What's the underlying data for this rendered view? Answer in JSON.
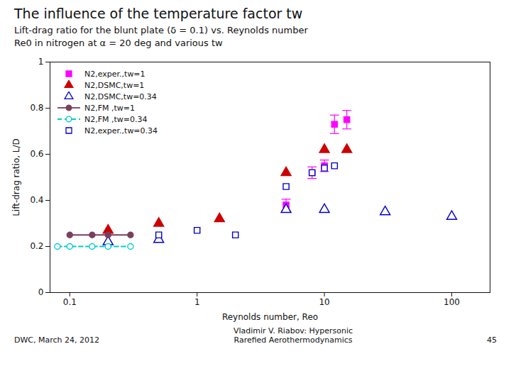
{
  "chart_data": {
    "type": "line",
    "title": "The influence of the temperature factor tw",
    "subtitle": "Lift-drag ratio for the blunt plate (δ = 0.1) vs. Reynolds number\nRe0 in nitrogen at α = 20 deg and various tw",
    "xlabel": "Reynolds number, Reo",
    "ylabel": "Lift-drag ratio, L/D",
    "annotations": [
      "DWC, March 24, 2012",
      "Vladimir V. Riabov: Hypersonic\nRarefied Aerothermodynamics",
      "45"
    ],
    "log": "x",
    "xlim": [
      0.07,
      200
    ],
    "xticks": [
      0.1,
      1,
      10,
      100
    ],
    "ylim": [
      0,
      1.0
    ],
    "yticks": [
      0,
      0.2,
      0.4,
      0.6,
      0.8,
      1
    ],
    "grid": false,
    "legend": "upper left",
    "series": [
      {
        "name": "N2,exper.,tw=1",
        "type": "scatter",
        "color": "#FF00FF",
        "marker": "filled_square",
        "line_style": "none",
        "x": [
          5,
          8,
          10,
          12,
          15
        ],
        "values": [
          0.38,
          0.52,
          0.55,
          0.73,
          0.75
        ],
        "yerr": [
          0.025,
          0.025,
          0.025,
          0.04,
          0.04
        ]
      },
      {
        "name": "N2,DSMC,tw=1",
        "type": "scatter",
        "color": "#CC0000",
        "marker": "filled_triangle",
        "line_style": "none",
        "x": [
          0.2,
          0.5,
          1.5,
          5,
          10,
          15
        ],
        "values": [
          0.27,
          0.3,
          0.32,
          0.52,
          0.62,
          0.62
        ]
      },
      {
        "name": "N2,DSMC,tw=0.34",
        "type": "scatter",
        "color": "#0000CC",
        "marker": "open_triangle",
        "line_style": "none",
        "x": [
          0.2,
          0.5,
          5,
          10,
          30,
          100
        ],
        "values": [
          0.22,
          0.23,
          0.36,
          0.36,
          0.35,
          0.33
        ]
      },
      {
        "name": "N2,FM ,tw=1",
        "type": "line",
        "color": "#7B3F5E",
        "marker": "filled_circle",
        "line_style": "solid",
        "x": [
          0.1,
          0.15,
          0.2,
          0.3
        ],
        "values": [
          0.25,
          0.25,
          0.25,
          0.25
        ]
      },
      {
        "name": "N2,FM ,tw=0.34",
        "type": "line",
        "color": "#00CCCC",
        "marker": "open_circle",
        "line_style": "dashed",
        "x": [
          0.08,
          0.1,
          0.15,
          0.2,
          0.3
        ],
        "values": [
          0.2,
          0.2,
          0.2,
          0.2,
          0.2
        ]
      },
      {
        "name": "N2,exper.,tw=0.34",
        "type": "scatter",
        "color": "#0000CC",
        "marker": "open_square",
        "line_style": "none",
        "x": [
          0.5,
          1.0,
          2.0,
          5,
          8,
          10,
          12
        ],
        "values": [
          0.25,
          0.27,
          0.25,
          0.46,
          0.52,
          0.54,
          0.55
        ]
      }
    ]
  }
}
